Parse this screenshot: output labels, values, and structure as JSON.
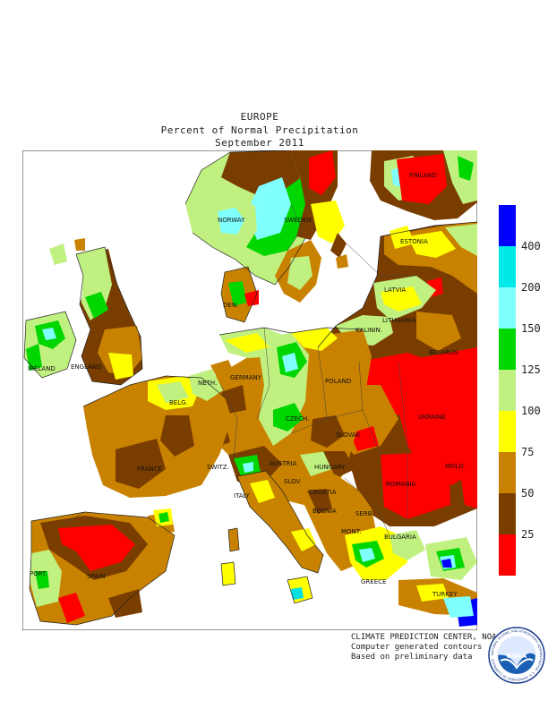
{
  "header": {
    "line1": "EUROPE",
    "line2": "Percent of Normal Precipitation",
    "line3": "September 2011"
  },
  "colors": {
    "sea": "#ffffff",
    "c0_25": "#ff0000",
    "c25_50": "#7a3d00",
    "c50_75": "#c88200",
    "c75_100": "#ffff00",
    "c100_125": "#c0f080",
    "c125_150": "#00d600",
    "c150_200": "#80ffff",
    "c200_400": "#00e0e0",
    "c400": "#0000ff"
  },
  "legend": {
    "labels": [
      "400",
      "200",
      "150",
      "125",
      "100",
      "75",
      "50",
      "25"
    ],
    "bins": [
      {
        "color": "#0000ff"
      },
      {
        "color": "#00e8e8"
      },
      {
        "color": "#80ffff"
      },
      {
        "color": "#00d600"
      },
      {
        "color": "#c0f080"
      },
      {
        "color": "#ffff00"
      },
      {
        "color": "#c88200"
      },
      {
        "color": "#7a3d00"
      },
      {
        "color": "#ff0000"
      }
    ]
  },
  "countries": {
    "norway": "NORWAY",
    "sweden": "SWEDEN",
    "finland": "FINLAND",
    "estonia": "ESTONIA",
    "latvia": "LATVIA",
    "lithuania": "LITHUANIA",
    "kalinin": "KALININ.",
    "belarus": "BELARUS",
    "ireland": "IRELAND",
    "england": "ENGLAND",
    "den": "DEN.",
    "neth": "NETH.",
    "belg": "BELG.",
    "germany": "GERMANY",
    "poland": "POLAND",
    "czech": "CZECH.",
    "slovak": "SLOVAK",
    "ukraine": "UKRAINE",
    "mold": "MOLD.",
    "france": "FRANCE",
    "switz": "SWITZ.",
    "austria": "AUSTRIA",
    "hungary": "HUNGARY",
    "romania": "ROMANIA",
    "slov": "SLOV.",
    "croatia": "CROATIA",
    "bosnia": "BOSNIA",
    "serb": "SERB.",
    "italy": "ITALY",
    "bulgaria": "BULGARIA",
    "mont": "MONT.",
    "port": "PORT.",
    "spain": "SPAIN",
    "greece": "GREECE",
    "turkey": "TURKEY"
  },
  "credits": {
    "line1": "CLIMATE PREDICTION CENTER, NOAA",
    "line2": "Computer generated contours",
    "line3": "Based on preliminary data"
  },
  "logo": {
    "center": "NOAA",
    "ring": "NATIONAL OCEANIC AND ATMOSPHERIC ADMINISTRATION · U.S. DEPARTMENT OF COMMERCE"
  }
}
